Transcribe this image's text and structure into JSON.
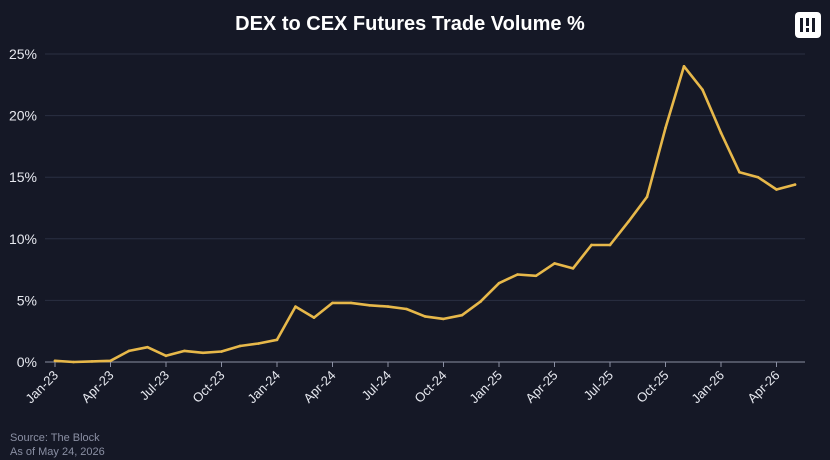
{
  "chart_data": {
    "type": "line",
    "title": "DEX to CEX Futures Trade Volume %",
    "xlabel": "",
    "ylabel": "",
    "ylim": [
      0,
      25
    ],
    "y_ticks": [
      "0%",
      "5%",
      "10%",
      "15%",
      "20%",
      "25%"
    ],
    "x_tick_labels": [
      "Jan-23",
      "Apr-23",
      "Jul-23",
      "Oct-23",
      "Jan-24",
      "Apr-24",
      "Jul-24",
      "Oct-24",
      "Jan-25",
      "Apr-25",
      "Jul-25",
      "Oct-25",
      "Jan-26",
      "Apr-26"
    ],
    "grid": true,
    "legend": "none",
    "series": [
      {
        "x": [
          "Jan-23",
          "Feb-23",
          "Mar-23",
          "Apr-23",
          "May-23",
          "Jun-23",
          "Jul-23",
          "Aug-23",
          "Sep-23",
          "Oct-23",
          "Nov-23",
          "Dec-23",
          "Jan-24",
          "Feb-24",
          "Mar-24",
          "Apr-24",
          "May-24",
          "Jun-24",
          "Jul-24",
          "Aug-24",
          "Sep-24",
          "Oct-24",
          "Nov-24",
          "Dec-24",
          "Jan-25",
          "Feb-25",
          "Mar-25",
          "Apr-25",
          "May-25",
          "Jun-25",
          "Jul-25",
          "Aug-25",
          "Sep-25",
          "Oct-25",
          "Nov-25",
          "Dec-25",
          "Jan-26",
          "Feb-26",
          "Mar-26",
          "Apr-26",
          "May-26"
        ],
        "values": [
          0.1,
          0.0,
          0.05,
          0.1,
          0.9,
          1.2,
          0.5,
          0.9,
          0.75,
          0.85,
          1.3,
          1.5,
          1.8,
          4.5,
          3.6,
          4.8,
          4.8,
          4.6,
          4.5,
          4.3,
          3.7,
          3.5,
          3.8,
          4.9,
          6.4,
          7.1,
          7.0,
          8.0,
          7.6,
          9.5,
          9.5,
          11.4,
          13.4,
          19.0,
          24.0,
          22.1,
          18.6,
          15.4,
          15.0,
          14.0,
          14.4
        ]
      }
    ]
  },
  "brand": {
    "accent_color": "#e7b84a",
    "background": "#151826",
    "logo_icon": "the-block-logo-icon"
  },
  "footer": {
    "source": "Source: The Block",
    "as_of": "As of May 24, 2026"
  }
}
